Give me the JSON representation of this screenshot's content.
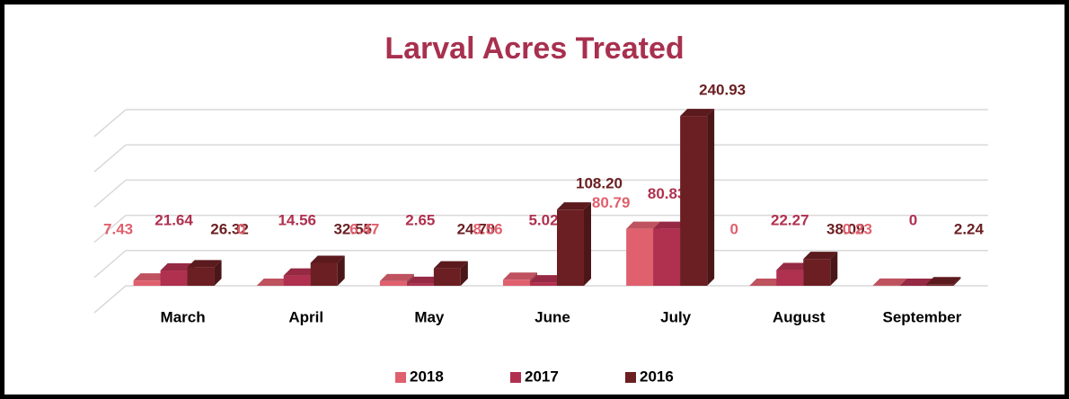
{
  "chart_data": {
    "type": "bar3d",
    "title": "Larval Acres Treated",
    "categories": [
      "March",
      "April",
      "May",
      "June",
      "July",
      "August",
      "September"
    ],
    "series": [
      {
        "name": "2018",
        "color": "#e0606e",
        "values": [
          7.43,
          0,
          6.47,
          8.56,
          80.79,
          0,
          0.23
        ],
        "value_labels": [
          "7.43",
          "0",
          "6.47",
          "8.56",
          "80.79",
          "0",
          "0.23"
        ]
      },
      {
        "name": "2017",
        "color": "#b0304f",
        "values": [
          21.64,
          14.56,
          2.65,
          5.02,
          80.83,
          22.27,
          0
        ],
        "value_labels": [
          "21.64",
          "14.56",
          "2.65",
          "5.02",
          "80.83",
          "22.27",
          "0"
        ]
      },
      {
        "name": "2016",
        "color": "#6b1f22",
        "values": [
          26.32,
          32.55,
          24.7,
          108.2,
          240.93,
          38.09,
          2.24
        ],
        "value_labels": [
          "26.32",
          "32.55",
          "24.70",
          "108.20",
          "240.93",
          "38.09",
          "2.24"
        ]
      }
    ],
    "ylim": [
      0,
      250
    ],
    "yticks": [
      0,
      50,
      100,
      150,
      200,
      250
    ],
    "grid": true,
    "legend": "bottom"
  }
}
